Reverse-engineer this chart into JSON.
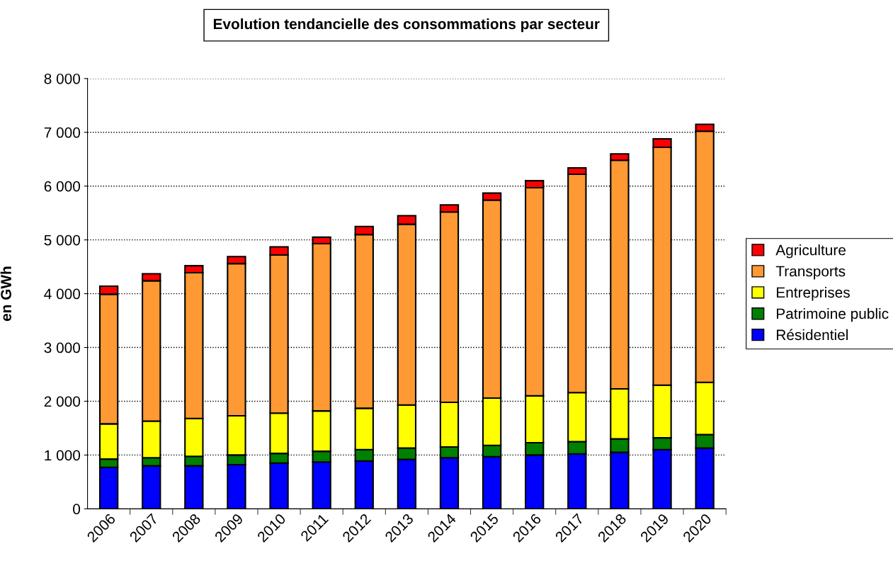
{
  "chart_data": {
    "type": "bar",
    "stacked": true,
    "title": "Evolution tendancielle des consommations par secteur",
    "ylabel": "en GWh",
    "categories": [
      "2006",
      "2007",
      "2008",
      "2009",
      "2010",
      "2011",
      "2012",
      "2013",
      "2014",
      "2015",
      "2016",
      "2017",
      "2018",
      "2019",
      "2020"
    ],
    "series": [
      {
        "name": "Résidentiel",
        "color": "#0000ff",
        "values": [
          770,
          800,
          800,
          820,
          850,
          870,
          890,
          920,
          950,
          970,
          1000,
          1020,
          1050,
          1100,
          1130
        ]
      },
      {
        "name": "Patrimoine public",
        "color": "#008000",
        "values": [
          155,
          150,
          175,
          180,
          180,
          200,
          210,
          210,
          200,
          210,
          230,
          230,
          250,
          220,
          250
        ]
      },
      {
        "name": "Entreprises",
        "color": "#ffff00",
        "values": [
          655,
          680,
          705,
          730,
          750,
          750,
          770,
          800,
          830,
          880,
          870,
          910,
          930,
          980,
          970
        ]
      },
      {
        "name": "Transports",
        "color": "#ff9933",
        "values": [
          2410,
          2610,
          2710,
          2830,
          2940,
          3110,
          3230,
          3360,
          3540,
          3680,
          3870,
          4060,
          4250,
          4420,
          4670
        ]
      },
      {
        "name": "Agriculture",
        "color": "#ff0000",
        "values": [
          150,
          130,
          130,
          130,
          150,
          120,
          150,
          160,
          130,
          130,
          130,
          120,
          120,
          160,
          130
        ]
      }
    ],
    "ylim": [
      0,
      8000
    ],
    "yticks": [
      0,
      {
        "value": 1000,
        "label": "1 000"
      },
      {
        "value": 2000,
        "label": "2 000"
      },
      {
        "value": 3000,
        "label": "3 000"
      },
      {
        "value": 4000,
        "label": "4 000"
      },
      {
        "value": 5000,
        "label": "5 000"
      },
      {
        "value": 6000,
        "label": "6 000"
      },
      {
        "value": 7000,
        "label": "7 000"
      },
      {
        "value": 8000,
        "label": "8 000"
      }
    ],
    "grid": "y",
    "legend": "right"
  }
}
